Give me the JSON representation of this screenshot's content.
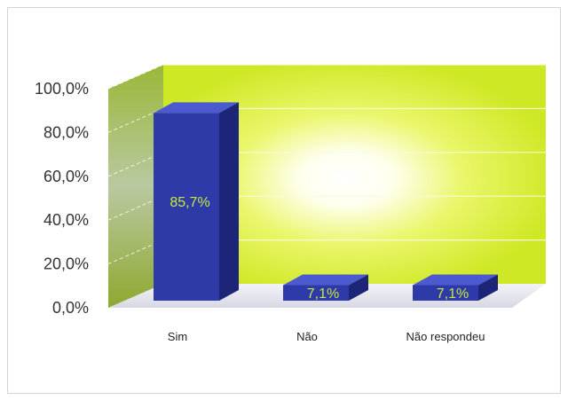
{
  "chart_data": {
    "type": "bar",
    "categories": [
      "Sim",
      "Não",
      "Não respondeu"
    ],
    "values": [
      85.7,
      7.1,
      7.1
    ],
    "data_labels": [
      "85,7%",
      "7,1%",
      "7,1%"
    ],
    "yticks": [
      "0,0%",
      "20,0%",
      "40,0%",
      "60,0%",
      "80,0%",
      "100,0%"
    ],
    "ylim": [
      0,
      100
    ],
    "style": "3d",
    "grid": true,
    "colors": {
      "bar": "#2e3aa8",
      "bar_top": "#4b5ad0",
      "bar_side": "#1c2578",
      "back_wall": "#d8ef2a",
      "glow": "#ffffff",
      "side_wall": "#8fa830",
      "floor": "#e4e4ee",
      "label": "#c6e83a"
    }
  }
}
